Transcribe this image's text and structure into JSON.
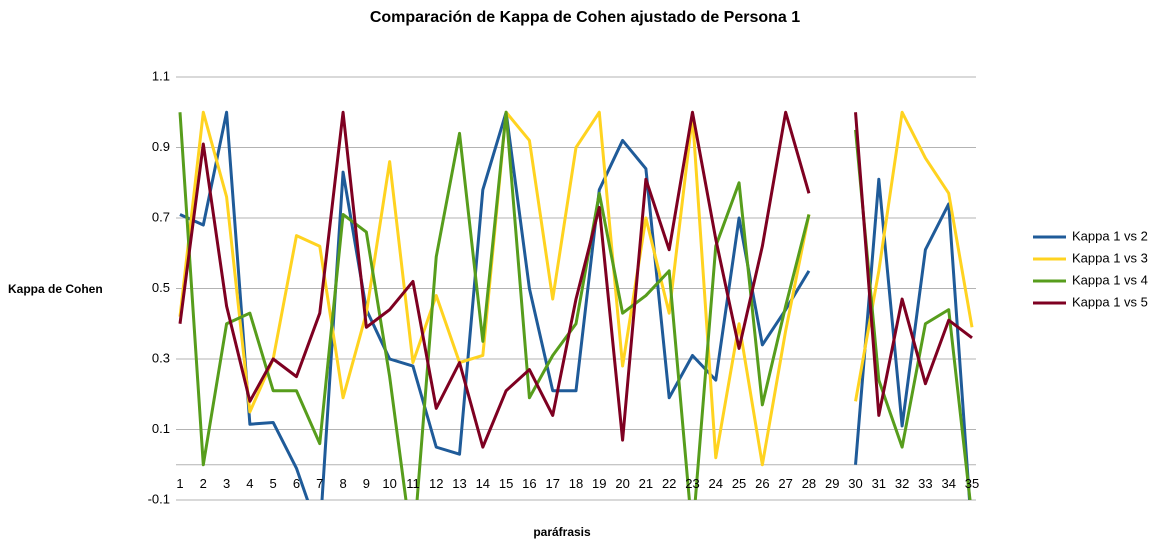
{
  "chart_data": {
    "type": "line",
    "title": "Comparación de Kappa de Cohen ajustado de Persona 1",
    "x_label": "paráfrasis",
    "y_label": "Kappa de Cohen",
    "categories": [
      "1",
      "2",
      "3",
      "4",
      "5",
      "6",
      "7",
      "8",
      "9",
      "10",
      "11",
      "12",
      "13",
      "14",
      "15",
      "16",
      "17",
      "18",
      "19",
      "20",
      "21",
      "22",
      "23",
      "24",
      "25",
      "26",
      "27",
      "28",
      "29",
      "30",
      "31",
      "32",
      "33",
      "34",
      "35"
    ],
    "series": [
      {
        "name": "Kappa 1 vs 2",
        "color": "#1f5b99",
        "values": [
          0.71,
          0.68,
          1.0,
          0.115,
          0.12,
          -0.01,
          -0.2,
          0.83,
          0.44,
          0.3,
          0.28,
          0.05,
          0.03,
          0.78,
          1.0,
          0.5,
          0.21,
          0.21,
          0.78,
          0.92,
          0.84,
          0.19,
          0.31,
          0.24,
          0.7,
          0.34,
          0.44,
          0.55,
          null,
          0.0,
          0.81,
          0.11,
          0.61,
          0.74,
          -0.2
        ]
      },
      {
        "name": "Kappa 1 vs 3",
        "color": "#ffd320",
        "values": [
          0.42,
          1.0,
          0.76,
          0.15,
          0.3,
          0.65,
          0.62,
          0.19,
          0.43,
          0.86,
          0.29,
          0.48,
          0.29,
          0.31,
          1.0,
          0.92,
          0.47,
          0.9,
          1.0,
          0.28,
          0.7,
          0.43,
          0.99,
          0.02,
          0.4,
          0.0,
          0.38,
          0.71,
          null,
          0.18,
          0.55,
          1.0,
          0.87,
          0.77,
          0.39
        ]
      },
      {
        "name": "Kappa 1 vs 4",
        "color": "#579d1c",
        "values": [
          1.0,
          0.0,
          0.4,
          0.43,
          0.21,
          0.21,
          0.06,
          0.71,
          0.66,
          0.25,
          -0.25,
          0.59,
          0.94,
          0.35,
          1.0,
          0.19,
          0.31,
          0.4,
          0.77,
          0.43,
          0.48,
          0.55,
          -0.2,
          0.62,
          0.8,
          0.17,
          0.45,
          0.71,
          null,
          0.95,
          0.24,
          0.05,
          0.4,
          0.44,
          -0.15
        ]
      },
      {
        "name": "Kappa 1 vs 5",
        "color": "#7e0021",
        "values": [
          0.4,
          0.91,
          0.45,
          0.18,
          0.3,
          0.25,
          0.43,
          1.0,
          0.39,
          0.44,
          0.52,
          0.16,
          0.29,
          0.05,
          0.21,
          0.27,
          0.14,
          0.47,
          0.73,
          0.07,
          0.81,
          0.61,
          1.0,
          0.64,
          0.33,
          0.62,
          1.0,
          0.77,
          null,
          1.0,
          0.14,
          0.47,
          0.23,
          0.41,
          0.36
        ]
      }
    ],
    "ylim": [
      -0.1,
      1.1
    ],
    "yticks": [
      -0.1,
      0.1,
      0.3,
      0.5,
      0.7,
      0.9,
      1.1
    ],
    "grid": true,
    "legend": "right"
  }
}
